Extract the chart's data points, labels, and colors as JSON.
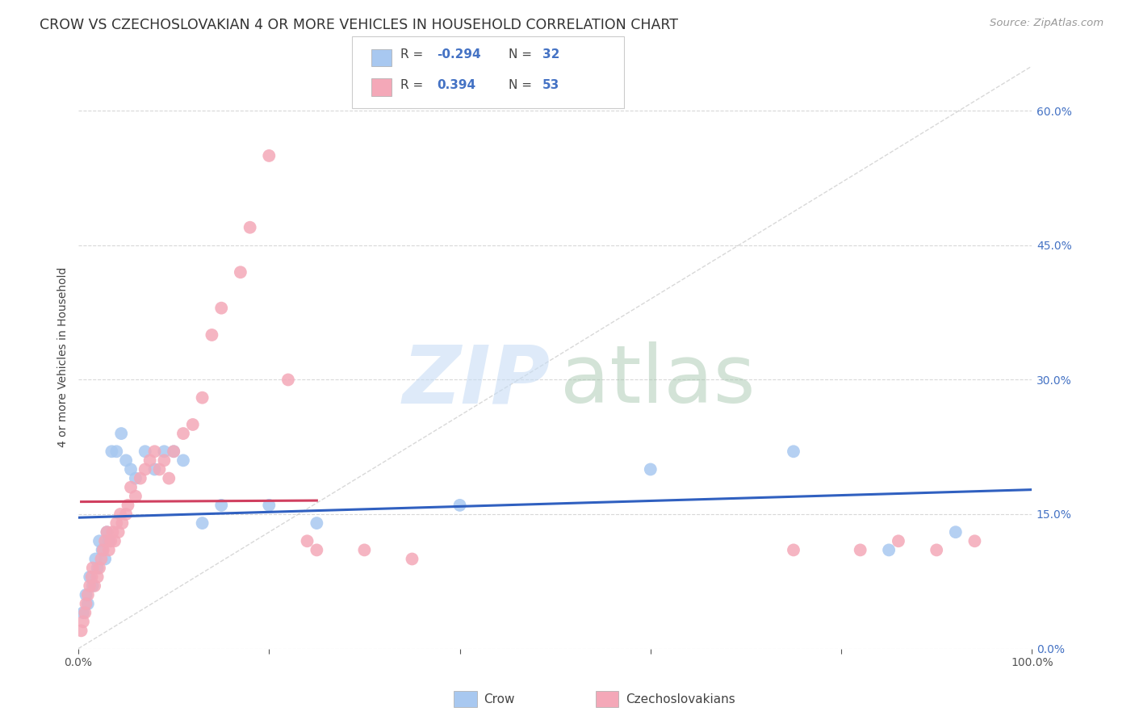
{
  "title": "CROW VS CZECHOSLOVAKIAN 4 OR MORE VEHICLES IN HOUSEHOLD CORRELATION CHART",
  "source": "Source: ZipAtlas.com",
  "ylabel": "4 or more Vehicles in Household",
  "xlim": [
    0,
    100
  ],
  "ylim": [
    0,
    65
  ],
  "ytick_vals": [
    0,
    15,
    30,
    45,
    60
  ],
  "ytick_labels": [
    "0.0%",
    "15.0%",
    "30.0%",
    "45.0%",
    "60.0%"
  ],
  "xtick_vals": [
    0,
    20,
    40,
    60,
    80,
    100
  ],
  "xtick_labels_show": [
    "0.0%",
    "",
    "",
    "",
    "",
    "100.0%"
  ],
  "crow_R": -0.294,
  "crow_N": 32,
  "czech_R": 0.394,
  "czech_N": 53,
  "crow_color": "#a8c8f0",
  "czech_color": "#f4a8b8",
  "crow_line_color": "#3060c0",
  "czech_line_color": "#d04060",
  "diagonal_color": "#c8c8c8",
  "background_color": "#ffffff",
  "grid_color": "#d8d8d8",
  "crow_x": [
    0.5,
    0.8,
    1.0,
    1.2,
    1.5,
    1.8,
    2.0,
    2.2,
    2.5,
    2.8,
    3.0,
    3.2,
    3.5,
    4.0,
    4.5,
    5.0,
    5.5,
    6.0,
    7.0,
    8.0,
    9.0,
    10.0,
    11.0,
    13.0,
    15.0,
    20.0,
    25.0,
    40.0,
    60.0,
    75.0,
    85.0,
    92.0
  ],
  "crow_y": [
    4.0,
    6.0,
    5.0,
    8.0,
    7.0,
    10.0,
    9.0,
    12.0,
    11.0,
    10.0,
    13.0,
    12.0,
    22.0,
    22.0,
    24.0,
    21.0,
    20.0,
    19.0,
    22.0,
    20.0,
    22.0,
    22.0,
    21.0,
    14.0,
    16.0,
    16.0,
    14.0,
    16.0,
    20.0,
    22.0,
    11.0,
    13.0
  ],
  "czech_x": [
    0.3,
    0.5,
    0.7,
    0.8,
    1.0,
    1.2,
    1.4,
    1.5,
    1.7,
    2.0,
    2.2,
    2.4,
    2.6,
    2.8,
    3.0,
    3.2,
    3.4,
    3.6,
    3.8,
    4.0,
    4.2,
    4.4,
    4.6,
    5.0,
    5.2,
    5.5,
    6.0,
    6.5,
    7.0,
    7.5,
    8.0,
    8.5,
    9.0,
    9.5,
    10.0,
    11.0,
    12.0,
    13.0,
    14.0,
    15.0,
    17.0,
    18.0,
    20.0,
    22.0,
    24.0,
    25.0,
    30.0,
    35.0,
    75.0,
    82.0,
    86.0,
    90.0,
    94.0
  ],
  "czech_y": [
    2.0,
    3.0,
    4.0,
    5.0,
    6.0,
    7.0,
    8.0,
    9.0,
    7.0,
    8.0,
    9.0,
    10.0,
    11.0,
    12.0,
    13.0,
    11.0,
    12.0,
    13.0,
    12.0,
    14.0,
    13.0,
    15.0,
    14.0,
    15.0,
    16.0,
    18.0,
    17.0,
    19.0,
    20.0,
    21.0,
    22.0,
    20.0,
    21.0,
    19.0,
    22.0,
    24.0,
    25.0,
    28.0,
    35.0,
    38.0,
    42.0,
    47.0,
    55.0,
    30.0,
    12.0,
    11.0,
    11.0,
    10.0,
    11.0,
    11.0,
    12.0,
    11.0,
    12.0
  ],
  "title_fontsize": 12.5,
  "axis_label_fontsize": 10,
  "tick_fontsize": 10,
  "source_fontsize": 9.5
}
